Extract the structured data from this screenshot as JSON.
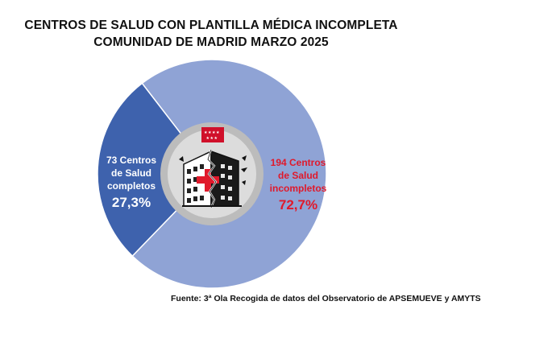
{
  "title_line1": "CENTROS DE SALUD CON PLANTILLA MÉDICA INCOMPLETA",
  "title_line2": "COMUNIDAD DE MADRID MARZO 2025",
  "source": "Fuente: 3ª Ola Recogida de datos del Observatorio de APSEMUEVE y AMYTS",
  "chart_data": {
    "type": "pie",
    "categories": [
      "Centros de Salud completos",
      "Centros de Salud incompletos"
    ],
    "values": [
      73,
      194
    ],
    "percentages": [
      "27,3%",
      "72,7%"
    ],
    "labels": [
      {
        "lines": [
          "73 Centros",
          "de Salud",
          "completos"
        ],
        "percent": "27,3%"
      },
      {
        "lines": [
          "194 Centros",
          "de Salud",
          "incompletos"
        ],
        "percent": "72,7%"
      }
    ],
    "colors": [
      "#3e62ad",
      "#8fa3d5"
    ],
    "label_colors": [
      "#ffffff",
      "#e0192b"
    ],
    "center_colors": {
      "ring": "#bcbcbc",
      "disc": "#dcdcdc"
    }
  }
}
